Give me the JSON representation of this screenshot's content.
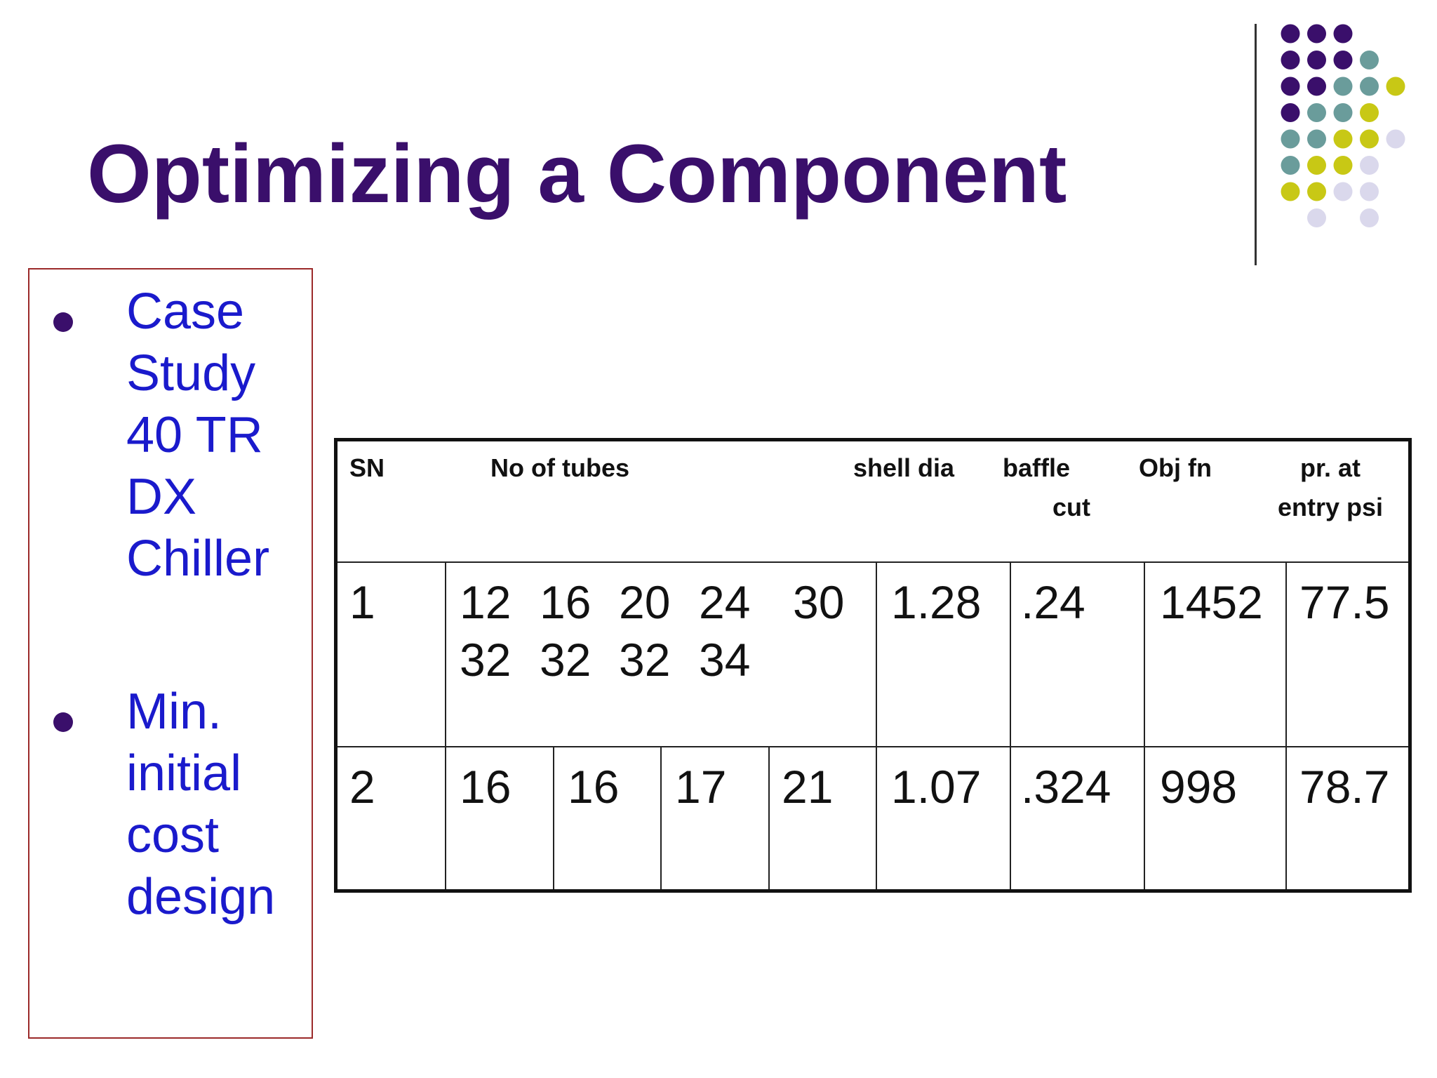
{
  "slide": {
    "title": "Optimizing a Component"
  },
  "decor": {
    "colors": {
      "purple": "#3a0f6b",
      "teal": "#6a9c9b",
      "olive": "#c8c815",
      "lavender": "#dad8ec",
      "rule": "#333333"
    },
    "dot_rows": [
      [
        "purple",
        "purple",
        "purple",
        null,
        null
      ],
      [
        "purple",
        "purple",
        "purple",
        "teal",
        null
      ],
      [
        "purple",
        "purple",
        "teal",
        "teal",
        "olive"
      ],
      [
        "purple",
        "teal",
        "teal",
        "olive",
        null
      ],
      [
        "teal",
        "teal",
        "olive",
        "olive",
        "lavender"
      ],
      [
        "teal",
        "olive",
        "olive",
        "lavender",
        null
      ],
      [
        "olive",
        "olive",
        "lavender",
        "lavender",
        null
      ],
      [
        null,
        "lavender",
        null,
        "lavender",
        null
      ]
    ]
  },
  "sidebar": {
    "bullets": [
      {
        "lines": [
          "Case",
          "Study",
          "40 TR",
          "DX",
          "Chiller"
        ]
      },
      {
        "lines": [
          "Min.",
          "initial",
          "cost",
          "design"
        ]
      }
    ]
  },
  "table": {
    "headers": {
      "sn": "SN",
      "tubes": "No of tubes",
      "shell_dia": "shell dia",
      "baffle_cut": [
        "baffle",
        "cut"
      ],
      "obj_fn": "Obj fn",
      "pressure": [
        "pr.  at",
        "entry psi"
      ]
    },
    "rows": [
      {
        "sn": "1",
        "tubes_top": [
          "12",
          "16",
          "20",
          "24",
          "30"
        ],
        "tubes_bottom": [
          "32",
          "32",
          "32",
          "34"
        ],
        "shell_dia": "1.28",
        "baffle_cut": ".24",
        "obj_fn": "1452",
        "pressure": "77.5"
      },
      {
        "sn": "2",
        "tubes": [
          "16",
          "16",
          "17",
          "21"
        ],
        "shell_dia": "1.07",
        "baffle_cut": ".324",
        "obj_fn": "998",
        "pressure": "78.7"
      }
    ]
  }
}
